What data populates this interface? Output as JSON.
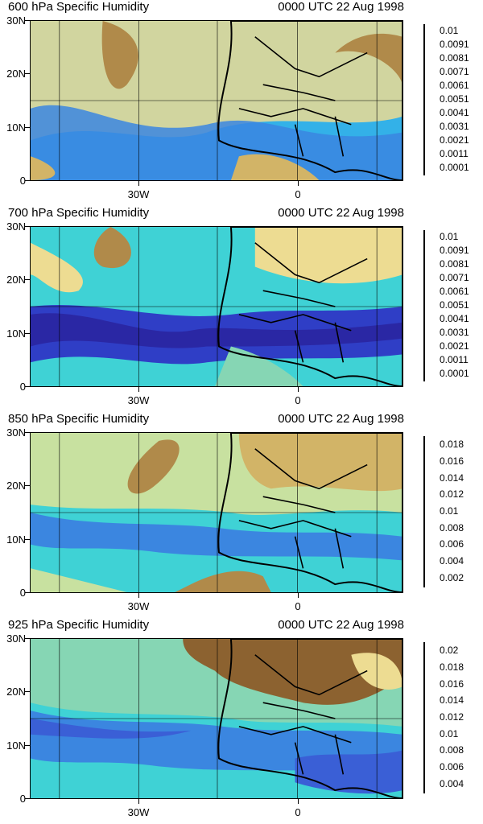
{
  "colors": {
    "scale": [
      "#8c6230",
      "#b08a4a",
      "#d2b467",
      "#eddc92",
      "#c8e1a0",
      "#86d6b4",
      "#3fd2d5",
      "#33b1e8",
      "#3b86e0",
      "#3a5fd6",
      "#2f3ec6",
      "#2a27a4",
      "#1e2d84"
    ],
    "land_edge": "#000000"
  },
  "y_axis": [
    "30N",
    "20N",
    "10N",
    "0"
  ],
  "x_axis": [
    "30W",
    "0"
  ],
  "panels": [
    {
      "title": "600 hPa Specific Humidity",
      "time": "0000 UTC 22 Aug 1998",
      "legend": [
        "0.01",
        "0.0091",
        "0.0081",
        "0.0071",
        "0.0061",
        "0.0051",
        "0.0041",
        "0.0031",
        "0.0021",
        "0.0011",
        "0.0001"
      ]
    },
    {
      "title": "700 hPa Specific Humidity",
      "time": "0000 UTC 22 Aug 1998",
      "legend": [
        "0.01",
        "0.0091",
        "0.0081",
        "0.0071",
        "0.0061",
        "0.0051",
        "0.0041",
        "0.0031",
        "0.0021",
        "0.0011",
        "0.0001"
      ]
    },
    {
      "title": "850 hPa Specific Humidity",
      "time": "0000 UTC 22 Aug 1998",
      "legend": [
        "0.018",
        "0.016",
        "0.014",
        "0.012",
        "0.01",
        "0.008",
        "0.006",
        "0.004",
        "0.002"
      ]
    },
    {
      "title": "925 hPa Specific Humidity",
      "time": "0000 UTC 22 Aug 1998",
      "legend": [
        "0.02",
        "0.018",
        "0.016",
        "0.014",
        "0.012",
        "0.01",
        "0.008",
        "0.006",
        "0.004"
      ]
    }
  ]
}
